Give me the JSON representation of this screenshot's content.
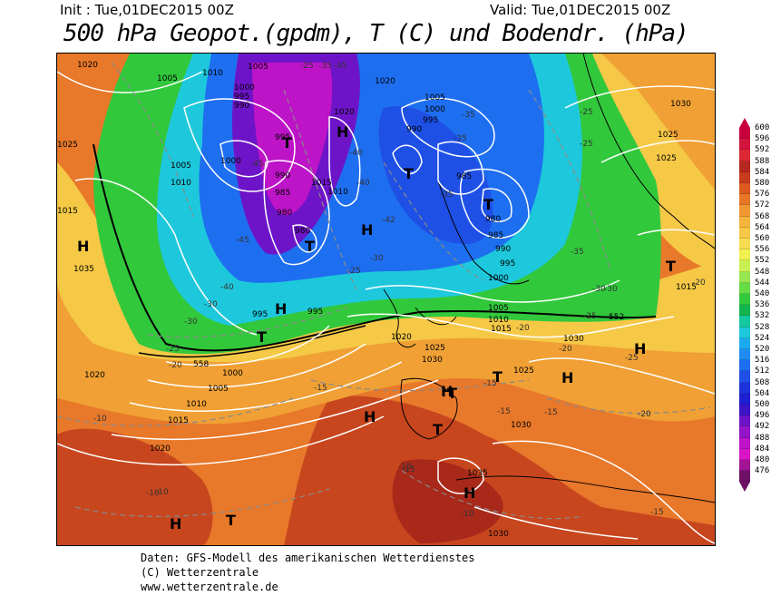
{
  "header": {
    "init": "Init : Tue,01DEC2015 00Z",
    "valid": "Valid: Tue,01DEC2015 00Z",
    "title": "500 hPa Geopot.(gpdm), T (C) und Bodendr. (hPa)"
  },
  "footer": {
    "line1": "Daten: GFS-Modell des amerikanischen Wetterdienstes",
    "line2": "(C) Wetterzentrale",
    "line3": "www.wetterzentrale.de"
  },
  "legend": {
    "levels": [
      "600",
      "596",
      "592",
      "588",
      "584",
      "580",
      "576",
      "572",
      "568",
      "564",
      "560",
      "556",
      "552",
      "548",
      "544",
      "540",
      "536",
      "532",
      "528",
      "524",
      "520",
      "516",
      "512",
      "508",
      "504",
      "500",
      "496",
      "492",
      "488",
      "484",
      "480",
      "476"
    ],
    "colors": [
      "#c8003c",
      "#d2143c",
      "#dc2832",
      "#b4281e",
      "#c83c1e",
      "#dc5a1e",
      "#e67828",
      "#f09632",
      "#f5b43c",
      "#f5c846",
      "#f5dc50",
      "#f0f050",
      "#c8f050",
      "#96e650",
      "#64dc46",
      "#32c83c",
      "#14b450",
      "#14c8a0",
      "#1ec8dc",
      "#1eaaf0",
      "#1e8cf0",
      "#1e6ef0",
      "#1e50e6",
      "#1e32dc",
      "#1e1ed2",
      "#3c14c8",
      "#6e14c8",
      "#9614c8",
      "#be14c8",
      "#dc14c8",
      "#a01496",
      "#6e1064"
    ]
  },
  "map": {
    "highs": [
      "H",
      "H",
      "H",
      "H",
      "H",
      "H",
      "H",
      "H",
      "H",
      "H"
    ],
    "lows": [
      "T",
      "T",
      "T",
      "T",
      "T",
      "T",
      "T",
      "T",
      "T",
      "T"
    ],
    "isobars": [
      "1020",
      "1010",
      "1005",
      "1005",
      "1025",
      "1005",
      "1010",
      "995",
      "990",
      "1000",
      "1000",
      "995",
      "990",
      "985",
      "980",
      "980",
      "1015",
      "1010",
      "1020",
      "1020",
      "1005",
      "1000",
      "995",
      "990",
      "985",
      "980",
      "985",
      "990",
      "995",
      "1000",
      "1005",
      "1010",
      "1015",
      "1025",
      "1030",
      "1025",
      "1015",
      "1020",
      "1025",
      "1030",
      "1020",
      "1000",
      "1005",
      "1010",
      "1015",
      "1020",
      "995",
      "995",
      "1035",
      "1030",
      "1030",
      "1025",
      "1035",
      "1030",
      "1015"
    ],
    "temps": [
      "-25",
      "-35",
      "-45",
      "-35",
      "-40",
      "-45",
      "-40",
      "-42",
      "-45",
      "-35",
      "-30",
      "-25",
      "-40",
      "-35",
      "-30",
      "-25",
      "-20",
      "-30",
      "-25",
      "-20",
      "-15",
      "-10",
      "-15",
      "-15",
      "-15",
      "-15",
      "-10",
      "-10",
      "-20",
      "-15",
      "-25",
      "-20",
      "-30",
      "-35",
      "-25",
      "-30",
      "-20",
      "-15",
      "-10",
      "-25"
    ],
    "contour558": "558",
    "contour552": "552"
  }
}
